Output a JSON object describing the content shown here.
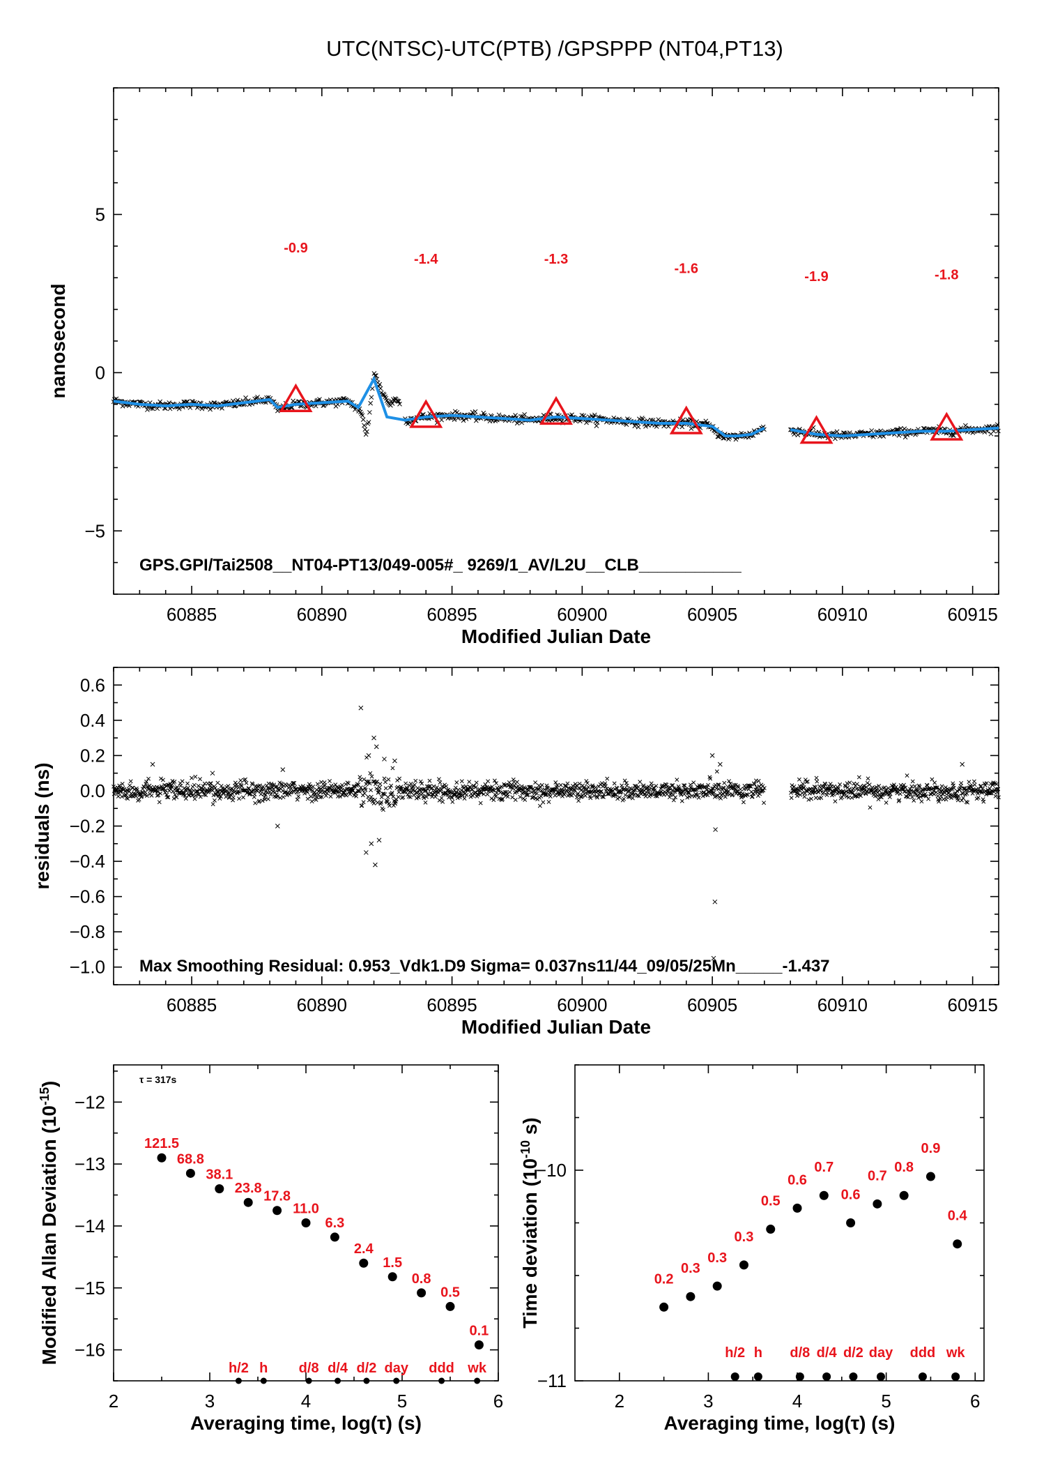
{
  "figure_title": "UTC(NTSC)-UTC(PTB)  /GPSPPP  (NT04,PT13)",
  "colors": {
    "series": "#1e90e6",
    "marker": "#e8141c",
    "points": "#000000"
  },
  "chart_data": [
    {
      "id": "top",
      "type": "scatter",
      "title": "UTC(NTSC)-UTC(PTB)  /GPSPPP  (NT04,PT13)",
      "xlabel": "Modified Julian Date",
      "ylabel": "nanosecond",
      "xlim": [
        60882,
        60916
      ],
      "ylim": [
        -7,
        9
      ],
      "xticks": [
        60885,
        60890,
        60895,
        60900,
        60905,
        60910,
        60915
      ],
      "yticks": [
        -5,
        0,
        5
      ],
      "annotation": "GPS.GPI/Tai2508__NT04-PT13/049-005#_  9269/1_AV/L2U__CLB___________",
      "series": [
        {
          "kind": "raw-points",
          "x": [
            60882.0,
            60883.0,
            60884.0,
            60885.0,
            60886.0,
            60887.0,
            60888.0,
            60888.3,
            60889.0,
            60890.0,
            60891.0,
            60891.5,
            60891.7,
            60891.8,
            60892.0,
            60892.3,
            60892.6,
            60892.9,
            60893.2,
            60894.0,
            60895.0,
            60896.0,
            60897.0,
            60898.0,
            60899.0,
            60900.0,
            60901.0,
            60902.0,
            60903.0,
            60904.0,
            60904.8,
            60905.2,
            60905.6,
            60906.0,
            60906.5,
            60907.0,
            60908.0,
            60909.0,
            60910.0,
            60911.0,
            60912.0,
            60913.0,
            60914.0,
            60915.0,
            60916.0
          ],
          "y": [
            -0.9,
            -1.0,
            -1.05,
            -1.0,
            -1.05,
            -0.95,
            -0.85,
            -1.15,
            -1.0,
            -0.95,
            -0.9,
            -1.2,
            -2.0,
            -1.5,
            0.0,
            -0.6,
            -1.0,
            -0.8,
            -1.5,
            -1.4,
            -1.35,
            -1.4,
            -1.45,
            -1.5,
            -1.4,
            -1.45,
            -1.5,
            -1.55,
            -1.6,
            -1.6,
            -1.65,
            -1.9,
            -2.05,
            -2.0,
            -1.95,
            -1.75,
            -1.8,
            -1.95,
            -2.0,
            -1.95,
            -1.9,
            -1.85,
            -1.85,
            -1.8,
            -1.75
          ]
        },
        {
          "kind": "smoothed",
          "x": [
            60882.0,
            60883.0,
            60884.0,
            60885.0,
            60886.0,
            60887.0,
            60888.0,
            60888.3,
            60889.0,
            60890.0,
            60891.0,
            60891.4,
            60892.0,
            60892.5,
            60893.2,
            60894.0,
            60895.0,
            60896.0,
            60897.0,
            60898.0,
            60899.0,
            60900.0,
            60901.0,
            60902.0,
            60903.0,
            60904.0,
            60905.0,
            60905.5,
            60906.0,
            60906.5,
            60907.0,
            60908.0,
            60909.0,
            60910.0,
            60911.0,
            60912.0,
            60913.0,
            60914.0,
            60915.0,
            60916.0
          ],
          "y": [
            -0.9,
            -1.0,
            -1.05,
            -1.0,
            -1.05,
            -0.95,
            -0.85,
            -1.1,
            -1.0,
            -0.95,
            -0.9,
            -1.1,
            -0.2,
            -1.4,
            -1.5,
            -1.4,
            -1.35,
            -1.4,
            -1.45,
            -1.5,
            -1.4,
            -1.45,
            -1.5,
            -1.55,
            -1.6,
            -1.6,
            -1.7,
            -2.0,
            -2.0,
            -1.95,
            -1.75,
            -1.8,
            -1.95,
            -2.0,
            -1.95,
            -1.9,
            -1.85,
            -1.85,
            -1.8,
            -1.75
          ]
        },
        {
          "kind": "triangles",
          "x": [
            60889,
            60894,
            60899,
            60904,
            60909,
            60914
          ],
          "y": [
            -0.9,
            -1.4,
            -1.3,
            -1.6,
            -1.9,
            -1.8
          ],
          "labels": [
            "-0.9",
            "-1.4",
            "-1.3",
            "-1.6",
            "-1.9",
            "-1.8"
          ],
          "label_y": [
            3.8,
            3.45,
            3.45,
            3.15,
            2.9,
            2.95
          ]
        }
      ]
    },
    {
      "id": "middle",
      "type": "scatter",
      "xlabel": "Modified Julian Date",
      "ylabel": "residuals (ns)",
      "xlim": [
        60882,
        60916
      ],
      "ylim": [
        -1.1,
        0.7
      ],
      "xticks": [
        60885,
        60890,
        60895,
        60900,
        60905,
        60910,
        60915
      ],
      "yticks": [
        -1.0,
        -0.8,
        -0.6,
        -0.4,
        -0.2,
        0.0,
        0.2,
        0.4,
        0.6
      ],
      "ytick_labels": [
        "−1.0",
        "−0.8",
        "−0.6",
        "−0.4",
        "−0.2",
        "0.0",
        "0.2",
        "0.4",
        "0.6"
      ],
      "annotation": "Max Smoothing Residual: 0.953_Vdk1.D9  Sigma= 0.037ns11/44_09/05/25Mn_____-1.437",
      "outliers": {
        "x": [
          60883.5,
          60885.8,
          60888.3,
          60888.5,
          60891.5,
          60891.7,
          60891.8,
          60891.9,
          60892.0,
          60892.05,
          60892.1,
          60892.2,
          60892.4,
          60892.8,
          60905.0,
          60905.05,
          60905.1,
          60905.12,
          60905.3,
          60914.6
        ],
        "y": [
          0.15,
          0.1,
          -0.2,
          0.12,
          0.47,
          -0.35,
          0.2,
          -0.3,
          0.3,
          -0.42,
          0.25,
          -0.28,
          0.18,
          0.17,
          0.2,
          -0.95,
          -0.63,
          -0.22,
          0.15,
          0.15
        ]
      },
      "gap": [
        60907.0,
        60908.0
      ],
      "noise_sigma": 0.037
    },
    {
      "id": "bottom-left",
      "type": "scatter",
      "xlabel": "Averaging time, log(τ) (s)",
      "ylabel": "Modified Allan Deviation (10⁻¹⁵)",
      "ylabel_main": "Modified Allan Deviation (10",
      "ylabel_exp": "-15",
      "ylabel_close": ")",
      "xlim": [
        2,
        6
      ],
      "ylim": [
        -16.5,
        -11.4
      ],
      "xticks": [
        2,
        3,
        4,
        5,
        6
      ],
      "yticks": [
        -16,
        -15,
        -14,
        -13,
        -12
      ],
      "ytick_labels": [
        "−16",
        "−15",
        "−14",
        "−13",
        "−12"
      ],
      "tau_note": "τ = 317s",
      "x": [
        2.5,
        2.8,
        3.1,
        3.4,
        3.7,
        4.0,
        4.3,
        4.6,
        4.9,
        5.2,
        5.5,
        5.8
      ],
      "y": [
        -12.9,
        -13.15,
        -13.4,
        -13.62,
        -13.75,
        -13.95,
        -14.18,
        -14.6,
        -14.82,
        -15.08,
        -15.3,
        -15.92
      ],
      "labels": [
        "121.5",
        "68.8",
        "38.1",
        "23.8",
        "17.8",
        "11.0",
        "6.3",
        "2.4",
        "1.5",
        "0.8",
        "0.5",
        "0.1"
      ],
      "period_markers": {
        "x": [
          3.3,
          3.56,
          4.03,
          4.33,
          4.63,
          4.94,
          5.41,
          5.78
        ],
        "labels": [
          "h/2",
          "h",
          "d/8",
          "d/4",
          "d/2",
          "day",
          "ddd",
          "wk"
        ]
      }
    },
    {
      "id": "bottom-right",
      "type": "scatter",
      "xlabel": "Averaging time, log(τ) (s)",
      "ylabel": "Time deviation (10⁻¹⁰ s)",
      "ylabel_main": "Time deviation (10",
      "ylabel_exp": "-10",
      "ylabel_close": " s)",
      "xlim": [
        1.5,
        6.1
      ],
      "ylim": [
        -11,
        -9.5
      ],
      "xticks": [
        2,
        3,
        4,
        5,
        6
      ],
      "yticks": [
        -11,
        -10
      ],
      "ytick_labels": [
        "−11",
        "−10"
      ],
      "x": [
        2.5,
        2.8,
        3.1,
        3.4,
        3.7,
        4.0,
        4.3,
        4.6,
        4.9,
        5.2,
        5.5,
        5.8
      ],
      "y": [
        -10.65,
        -10.6,
        -10.55,
        -10.45,
        -10.28,
        -10.18,
        -10.12,
        -10.25,
        -10.16,
        -10.12,
        -10.03,
        -10.35
      ],
      "labels": [
        "0.2",
        "0.3",
        "0.3",
        "0.3",
        "0.5",
        "0.6",
        "0.7",
        "0.6",
        "0.7",
        "0.8",
        "0.9",
        "0.4"
      ],
      "period_markers": {
        "x": [
          3.3,
          3.56,
          4.03,
          4.33,
          4.63,
          4.94,
          5.41,
          5.78
        ],
        "labels": [
          "h/2",
          "h",
          "d/8",
          "d/4",
          "d/2",
          "day",
          "ddd",
          "wk"
        ]
      }
    }
  ]
}
